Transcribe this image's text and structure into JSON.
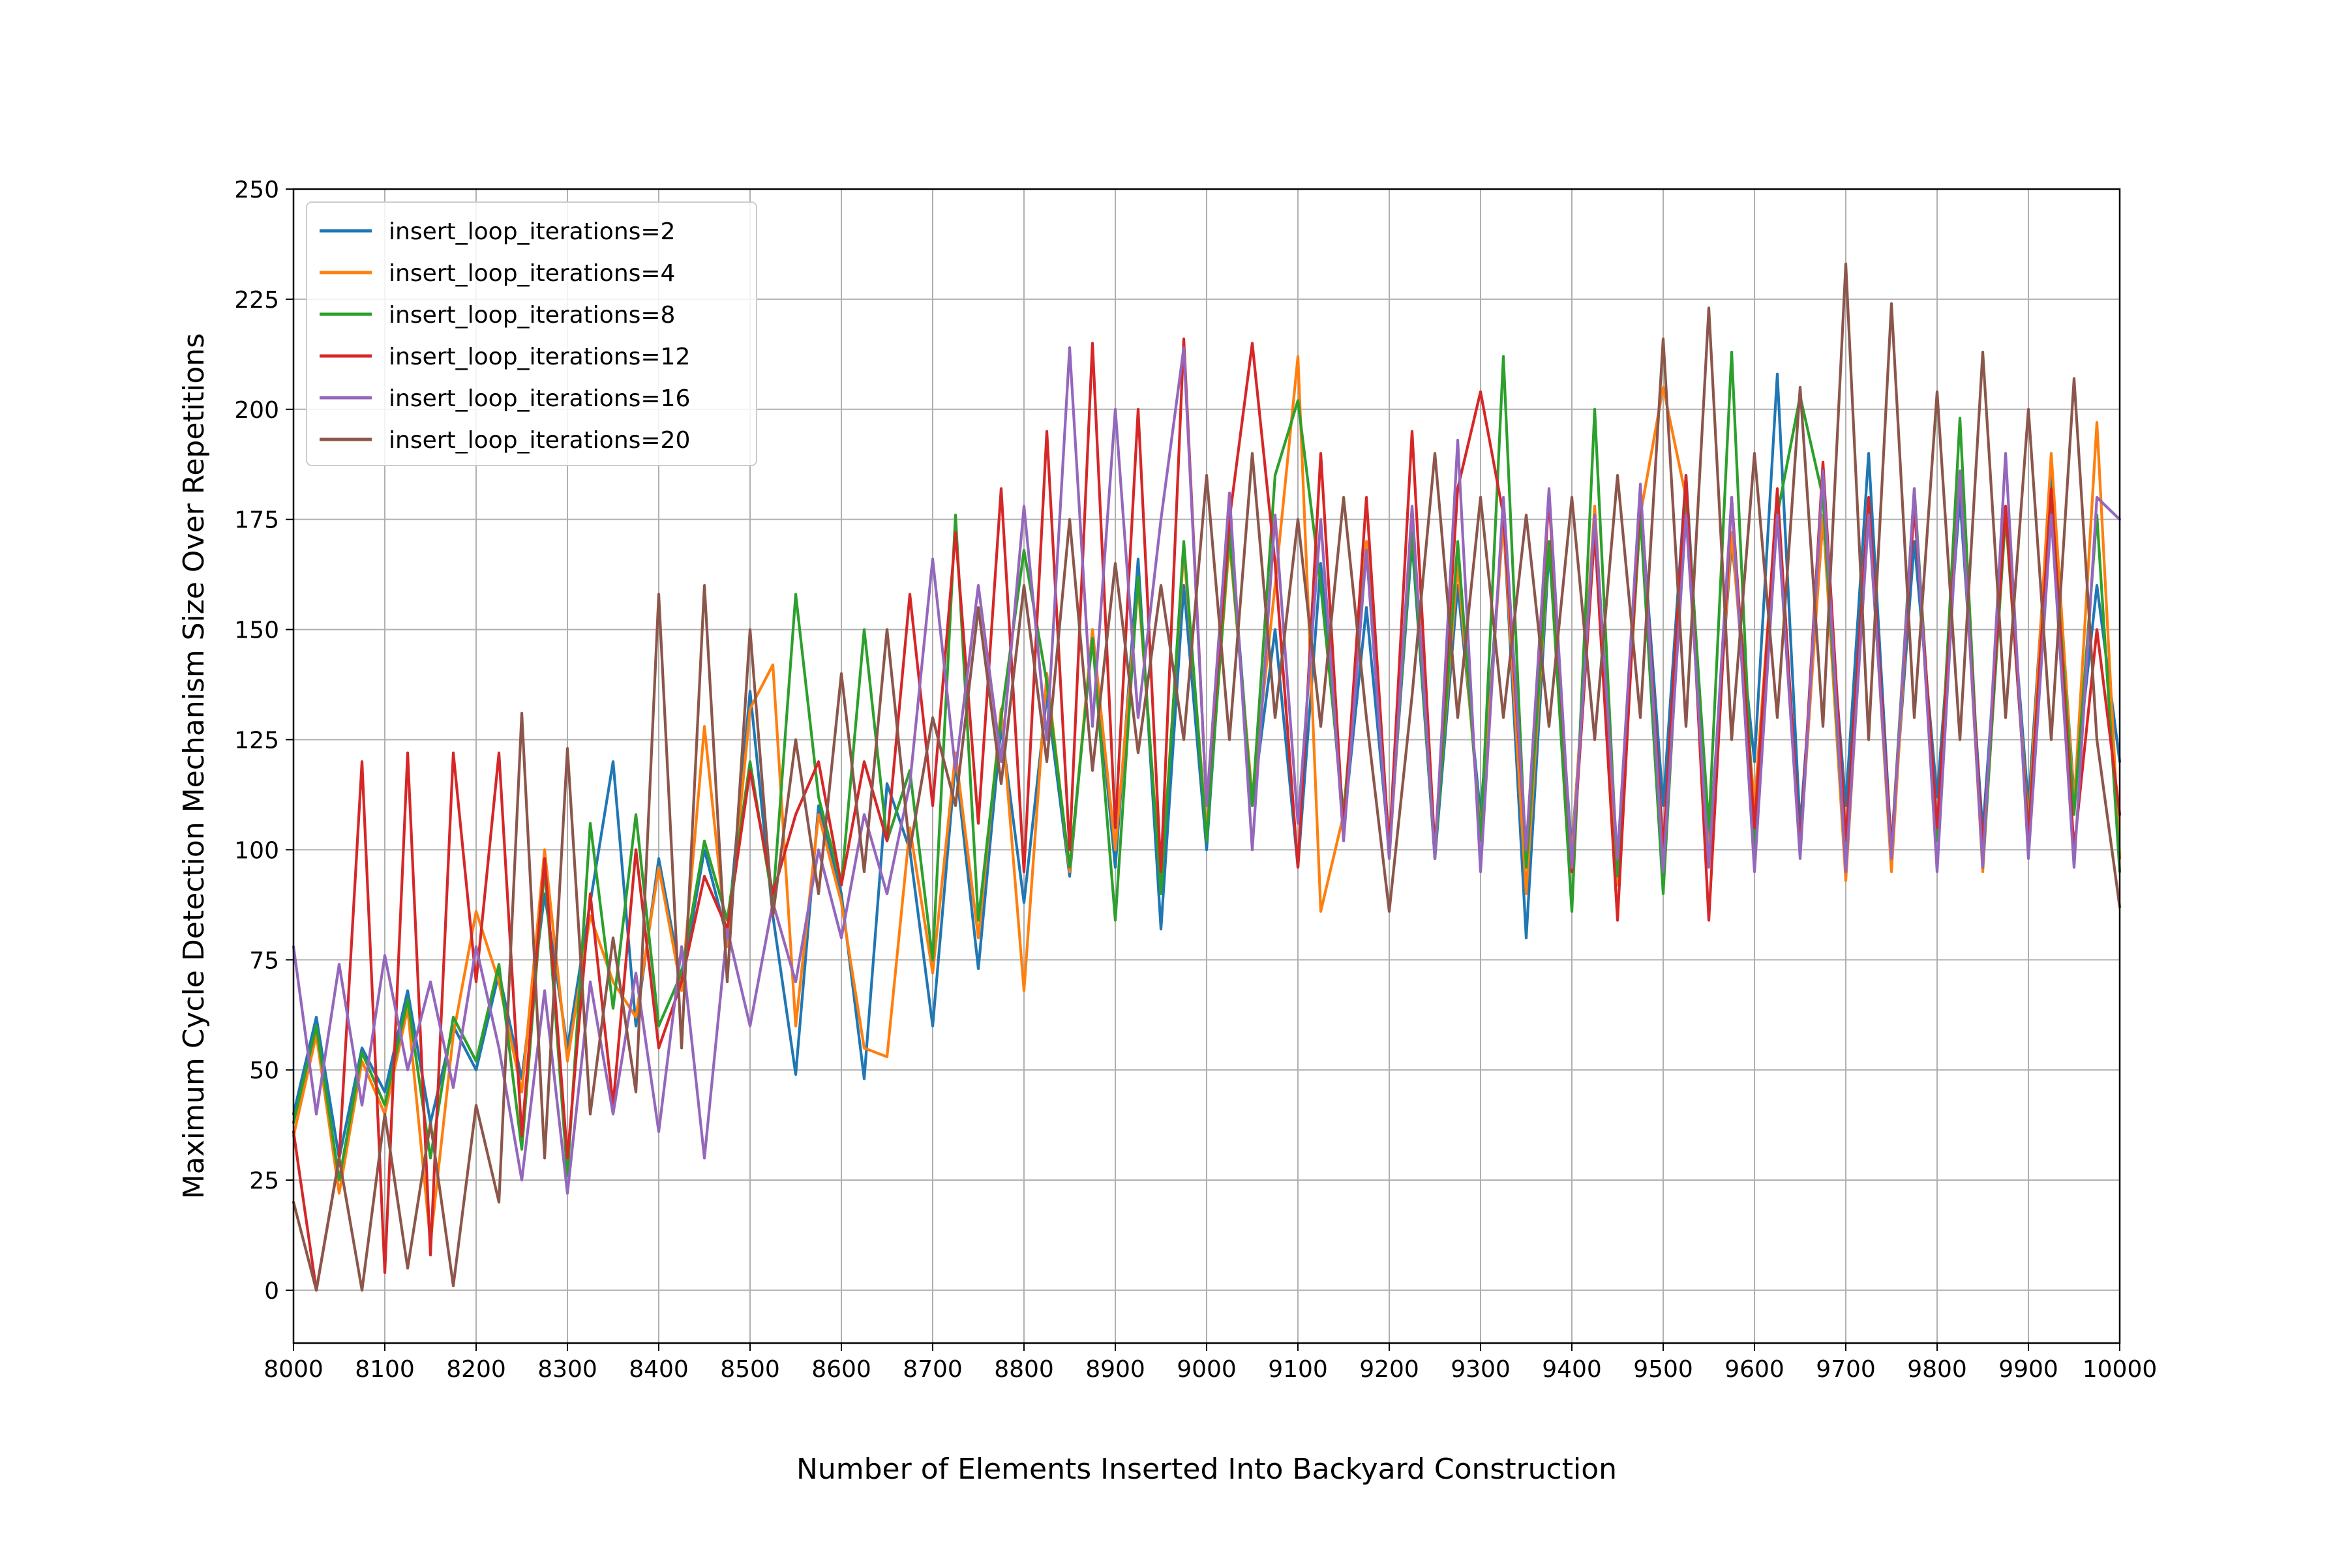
{
  "chart_data": {
    "type": "line",
    "title": "",
    "xlabel": "Number of Elements Inserted Into Backyard Construction",
    "ylabel": "Maximum Cycle Detection Mechanism Size Over Repetitions",
    "xlim": [
      8000,
      10000
    ],
    "ylim": [
      -12,
      250
    ],
    "x_ticks": [
      "8000",
      "8100",
      "8200",
      "8300",
      "8400",
      "8500",
      "8600",
      "8700",
      "8800",
      "8900",
      "9000",
      "9100",
      "9200",
      "9300",
      "9400",
      "9500",
      "9600",
      "9700",
      "9800",
      "9900",
      "10000"
    ],
    "y_ticks": [
      "0",
      "25",
      "50",
      "75",
      "100",
      "125",
      "150",
      "175",
      "200",
      "225",
      "250"
    ],
    "grid": true,
    "legend_position": "top-left",
    "series": [
      {
        "name": "insert_loop_iterations=2",
        "color": "#1f77b4",
        "x": [
          8000,
          8025,
          8050,
          8075,
          8100,
          8125,
          8150,
          8175,
          8200,
          8225,
          8250,
          8275,
          8300,
          8325,
          8350,
          8375,
          8400,
          8425,
          8450,
          8475,
          8500,
          8525,
          8550,
          8575,
          8600,
          8625,
          8650,
          8675,
          8700,
          8725,
          8750,
          8775,
          8800,
          8825,
          8850,
          8875,
          8900,
          8925,
          8950,
          8975,
          9000,
          9025,
          9050,
          9075,
          9100,
          9125,
          9150,
          9175,
          9200,
          9225,
          9250,
          9275,
          9300,
          9325,
          9350,
          9375,
          9400,
          9425,
          9450,
          9475,
          9500,
          9525,
          9550,
          9575,
          9600,
          9625,
          9650,
          9675,
          9700,
          9725,
          9750,
          9775,
          9800,
          9825,
          9850,
          9875,
          9900,
          9925,
          9950,
          9975,
          10000
        ],
        "y": [
          40,
          62,
          30,
          55,
          45,
          68,
          38,
          60,
          50,
          72,
          48,
          90,
          55,
          88,
          120,
          60,
          98,
          70,
          100,
          80,
          136,
          85,
          49,
          110,
          90,
          48,
          115,
          100,
          60,
          120,
          73,
          128,
          88,
          135,
          94,
          150,
          96,
          166,
          82,
          160,
          100,
          175,
          110,
          150,
          96,
          165,
          105,
          155,
          100,
          170,
          98,
          160,
          108,
          175,
          80,
          168,
          100,
          172,
          95,
          180,
          110,
          185,
          100,
          170,
          120,
          208,
          105,
          175,
          110,
          190,
          100,
          170,
          112,
          180,
          104,
          176,
          110,
          186,
          112,
          160,
          120
        ]
      },
      {
        "name": "insert_loop_iterations=4",
        "color": "#ff7f0e",
        "x": [
          8000,
          8025,
          8050,
          8075,
          8100,
          8125,
          8150,
          8175,
          8200,
          8225,
          8250,
          8275,
          8300,
          8325,
          8350,
          8375,
          8400,
          8425,
          8450,
          8475,
          8500,
          8525,
          8550,
          8575,
          8600,
          8625,
          8650,
          8675,
          8700,
          8725,
          8750,
          8775,
          8800,
          8825,
          8850,
          8875,
          8900,
          8925,
          8950,
          8975,
          9000,
          9025,
          9050,
          9075,
          9100,
          9125,
          9150,
          9175,
          9200,
          9225,
          9250,
          9275,
          9300,
          9325,
          9350,
          9375,
          9400,
          9425,
          9450,
          9475,
          9500,
          9525,
          9550,
          9575,
          9600,
          9625,
          9650,
          9675,
          9700,
          9725,
          9750,
          9775,
          9800,
          9825,
          9850,
          9875,
          9900,
          9925,
          9950,
          9975,
          10000
        ],
        "y": [
          35,
          58,
          22,
          52,
          40,
          64,
          11,
          58,
          86,
          70,
          45,
          100,
          52,
          85,
          70,
          62,
          96,
          68,
          128,
          78,
          132,
          142,
          60,
          108,
          88,
          55,
          53,
          105,
          72,
          122,
          80,
          132,
          68,
          140,
          95,
          150,
          100,
          160,
          92,
          168,
          104,
          170,
          112,
          160,
          212,
          86,
          108,
          170,
          98,
          175,
          100,
          165,
          104,
          175,
          90,
          170,
          98,
          178,
          92,
          176,
          205,
          180,
          98,
          172,
          110,
          180,
          100,
          176,
          93,
          178,
          95,
          180,
          104,
          186,
          95,
          178,
          105,
          190,
          110,
          197,
          98
        ]
      },
      {
        "name": "insert_loop_iterations=8",
        "color": "#2ca02c",
        "x": [
          8000,
          8025,
          8050,
          8075,
          8100,
          8125,
          8150,
          8175,
          8200,
          8225,
          8250,
          8275,
          8300,
          8325,
          8350,
          8375,
          8400,
          8425,
          8450,
          8475,
          8500,
          8525,
          8550,
          8575,
          8600,
          8625,
          8650,
          8675,
          8700,
          8725,
          8750,
          8775,
          8800,
          8825,
          8850,
          8875,
          8900,
          8925,
          8950,
          8975,
          9000,
          9025,
          9050,
          9075,
          9100,
          9125,
          9150,
          9175,
          9200,
          9225,
          9250,
          9275,
          9300,
          9325,
          9350,
          9375,
          9400,
          9425,
          9450,
          9475,
          9500,
          9525,
          9550,
          9575,
          9600,
          9625,
          9650,
          9675,
          9700,
          9725,
          9750,
          9775,
          9800,
          9825,
          9850,
          9875,
          9900,
          9925,
          9950,
          9975,
          10000
        ],
        "y": [
          38,
          60,
          25,
          54,
          42,
          66,
          30,
          62,
          52,
          74,
          32,
          96,
          26,
          106,
          64,
          108,
          60,
          72,
          102,
          84,
          120,
          88,
          158,
          112,
          92,
          150,
          102,
          118,
          75,
          176,
          84,
          130,
          168,
          138,
          96,
          148,
          84,
          162,
          90,
          170,
          102,
          172,
          110,
          185,
          202,
          160,
          108,
          168,
          100,
          172,
          98,
          170,
          102,
          212,
          96,
          170,
          86,
          200,
          94,
          176,
          90,
          182,
          105,
          213,
          100,
          176,
          203,
          180,
          96,
          178,
          100,
          182,
          102,
          198,
          96,
          176,
          104,
          180,
          108,
          176,
          95
        ]
      },
      {
        "name": "insert_loop_iterations=12",
        "color": "#d62728",
        "x": [
          8000,
          8025,
          8050,
          8075,
          8100,
          8125,
          8150,
          8175,
          8200,
          8225,
          8250,
          8275,
          8300,
          8325,
          8350,
          8375,
          8400,
          8425,
          8450,
          8475,
          8500,
          8525,
          8550,
          8575,
          8600,
          8625,
          8650,
          8675,
          8700,
          8725,
          8750,
          8775,
          8800,
          8825,
          8850,
          8875,
          8900,
          8925,
          8950,
          8975,
          9000,
          9025,
          9050,
          9075,
          9100,
          9125,
          9150,
          9175,
          9200,
          9225,
          9250,
          9275,
          9300,
          9325,
          9350,
          9375,
          9400,
          9425,
          9450,
          9475,
          9500,
          9525,
          9550,
          9575,
          9600,
          9625,
          9650,
          9675,
          9700,
          9725,
          9750,
          9775,
          9800,
          9825,
          9850,
          9875,
          9900,
          9925,
          9950,
          9975,
          10000
        ],
        "y": [
          36,
          0,
          30,
          120,
          4,
          122,
          8,
          122,
          70,
          122,
          35,
          98,
          30,
          90,
          42,
          100,
          55,
          70,
          94,
          82,
          118,
          90,
          108,
          120,
          92,
          120,
          102,
          158,
          110,
          172,
          106,
          182,
          95,
          195,
          100,
          215,
          105,
          200,
          95,
          216,
          110,
          175,
          215,
          165,
          96,
          190,
          104,
          180,
          100,
          195,
          100,
          182,
          204,
          176,
          100,
          180,
          95,
          172,
          84,
          182,
          100,
          185,
          84,
          180,
          105,
          182,
          100,
          188,
          102,
          180,
          100,
          178,
          105,
          185,
          100,
          178,
          103,
          182,
          100,
          150,
          108
        ]
      },
      {
        "name": "insert_loop_iterations=16",
        "color": "#9467bd",
        "x": [
          8000,
          8025,
          8050,
          8075,
          8100,
          8125,
          8150,
          8175,
          8200,
          8225,
          8250,
          8275,
          8300,
          8325,
          8350,
          8375,
          8400,
          8425,
          8450,
          8475,
          8500,
          8525,
          8550,
          8575,
          8600,
          8625,
          8650,
          8675,
          8700,
          8725,
          8750,
          8775,
          8800,
          8825,
          8850,
          8875,
          8900,
          8925,
          8950,
          8975,
          9000,
          9025,
          9050,
          9075,
          9100,
          9125,
          9150,
          9175,
          9200,
          9225,
          9250,
          9275,
          9300,
          9325,
          9350,
          9375,
          9400,
          9425,
          9450,
          9475,
          9500,
          9525,
          9550,
          9575,
          9600,
          9625,
          9650,
          9675,
          9700,
          9725,
          9750,
          9775,
          9800,
          9825,
          9850,
          9875,
          9900,
          9925,
          9950,
          9975,
          10000
        ],
        "y": [
          78,
          40,
          74,
          42,
          76,
          50,
          70,
          46,
          78,
          55,
          25,
          68,
          22,
          70,
          40,
          72,
          36,
          78,
          30,
          82,
          60,
          88,
          70,
          100,
          80,
          108,
          90,
          115,
          166,
          118,
          160,
          120,
          178,
          125,
          214,
          128,
          200,
          130,
          175,
          214,
          110,
          181,
          100,
          176,
          106,
          175,
          102,
          168,
          98,
          178,
          98,
          193,
          95,
          180,
          100,
          182,
          96,
          176,
          98,
          183,
          95,
          176,
          96,
          180,
          95,
          176,
          98,
          186,
          95,
          176,
          98,
          182,
          95,
          186,
          96,
          190,
          98,
          176,
          96,
          180,
          175
        ]
      },
      {
        "name": "insert_loop_iterations=20",
        "color": "#8c564b",
        "x": [
          8000,
          8025,
          8050,
          8075,
          8100,
          8125,
          8150,
          8175,
          8200,
          8225,
          8250,
          8275,
          8300,
          8325,
          8350,
          8375,
          8400,
          8425,
          8450,
          8475,
          8500,
          8525,
          8550,
          8575,
          8600,
          8625,
          8650,
          8675,
          8700,
          8725,
          8750,
          8775,
          8800,
          8825,
          8850,
          8875,
          8900,
          8925,
          8950,
          8975,
          9000,
          9025,
          9050,
          9075,
          9100,
          9125,
          9150,
          9175,
          9200,
          9225,
          9250,
          9275,
          9300,
          9325,
          9350,
          9375,
          9400,
          9425,
          9450,
          9475,
          9500,
          9525,
          9550,
          9575,
          9600,
          9625,
          9650,
          9675,
          9700,
          9725,
          9750,
          9775,
          9800,
          9825,
          9850,
          9875,
          9900,
          9925,
          9950,
          9975,
          10000
        ],
        "y": [
          20,
          0,
          30,
          0,
          40,
          5,
          38,
          1,
          42,
          20,
          131,
          30,
          123,
          40,
          80,
          45,
          158,
          55,
          160,
          70,
          150,
          85,
          125,
          90,
          140,
          95,
          150,
          100,
          130,
          110,
          155,
          115,
          160,
          120,
          175,
          118,
          165,
          122,
          160,
          125,
          185,
          125,
          190,
          130,
          175,
          128,
          180,
          130,
          86,
          135,
          190,
          130,
          180,
          130,
          176,
          128,
          180,
          125,
          185,
          130,
          216,
          128,
          223,
          125,
          190,
          130,
          205,
          128,
          233,
          125,
          224,
          130,
          204,
          125,
          213,
          130,
          200,
          125,
          207,
          125,
          87
        ]
      }
    ]
  }
}
